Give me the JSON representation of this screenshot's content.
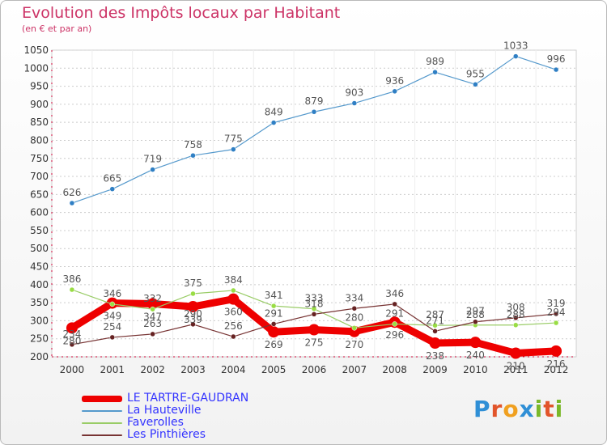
{
  "header": {
    "title": "Evolution des Impôts locaux par Habitant",
    "subtitle": "(en € et par an)"
  },
  "logo": {
    "text": "Proxiti"
  },
  "colors": {
    "title": "#cc3366",
    "axis": "#cc0033",
    "grid": "#cccccc",
    "legend_text": "#3333ff",
    "label_text": "#555555"
  },
  "chart_data": {
    "type": "line",
    "x": [
      "2000",
      "2001",
      "2002",
      "2003",
      "2004",
      "2005",
      "2006",
      "2007",
      "2008",
      "2009",
      "2010",
      "2011",
      "2012"
    ],
    "ylim": [
      200,
      1050
    ],
    "yticks": [
      200,
      250,
      300,
      350,
      400,
      450,
      500,
      550,
      600,
      650,
      700,
      750,
      800,
      850,
      900,
      950,
      1000,
      1050
    ],
    "grid": "horizontal",
    "legend_position": "bottom-left",
    "series": [
      {
        "name": "LE TARTRE-GAUDRAN",
        "color": "#ee0000",
        "values": [
          280,
          349,
          347,
          339,
          360,
          269,
          275,
          270,
          296,
          238,
          240,
          210,
          216
        ]
      },
      {
        "name": "La Hauteville",
        "color": "#5599cc",
        "values": [
          626,
          665,
          719,
          758,
          775,
          849,
          879,
          903,
          936,
          989,
          955,
          1033,
          996
        ]
      },
      {
        "name": "Faverolles",
        "color": "#99cc66",
        "values": [
          386,
          346,
          332,
          375,
          384,
          341,
          333,
          280,
          291,
          287,
          288,
          288,
          294
        ]
      },
      {
        "name": "Les Pinthières",
        "color": "#773333",
        "values": [
          234,
          254,
          263,
          290,
          256,
          291,
          318,
          334,
          346,
          271,
          297,
          308,
          319
        ]
      }
    ]
  }
}
